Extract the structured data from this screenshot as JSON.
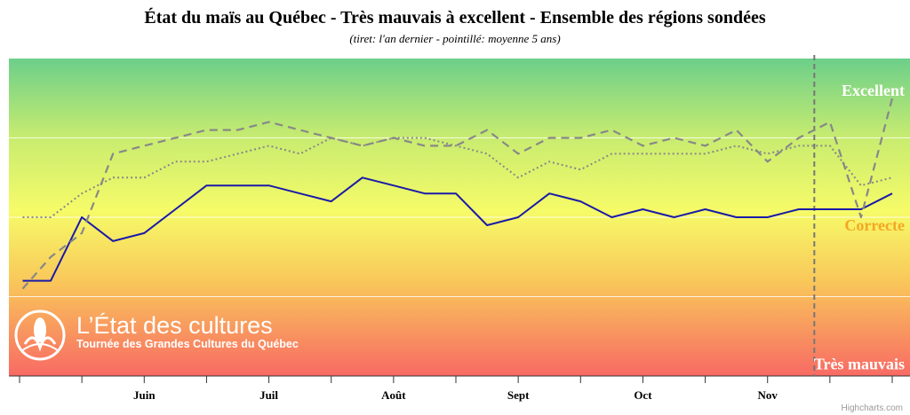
{
  "chart_data": {
    "type": "line",
    "title": "État du maïs au Québec - Très mauvais à excellent - Ensemble des régions sondées",
    "subtitle": "(tiret: l'an dernier - pointillé: moyenne 5 ans)",
    "xlabel": "",
    "ylabel": "",
    "ylim": [
      0,
      4
    ],
    "grid": true,
    "x_tick_labels": [
      "Juin",
      "Juil",
      "Août",
      "Sept",
      "Oct",
      "Nov"
    ],
    "x_tick_positions": [
      4,
      8,
      12,
      16,
      20,
      24
    ],
    "xlim": [
      0,
      28
    ],
    "band_labels": [
      {
        "label": "Excellent",
        "value": 3.6,
        "color": "#ffffff"
      },
      {
        "label": "Correcte",
        "value": 1.9,
        "color": "#f5a623"
      },
      {
        "label": "Très mauvais",
        "value": 0.15,
        "color": "#ffffff"
      }
    ],
    "vertical_marker_x": 25.5,
    "series": [
      {
        "style": "solid",
        "color": "#1a1aa8",
        "x": [
          0.1,
          1,
          2,
          3,
          4,
          5,
          6,
          7,
          8,
          9,
          10,
          11,
          12,
          13,
          14,
          15,
          16,
          17,
          18,
          19,
          20,
          21,
          22,
          23,
          24,
          25,
          26,
          27,
          28
        ],
        "y": [
          1.2,
          1.2,
          2.0,
          1.7,
          1.8,
          2.1,
          2.4,
          2.4,
          2.4,
          2.3,
          2.2,
          2.5,
          2.4,
          2.3,
          2.3,
          1.9,
          2.0,
          2.3,
          2.2,
          2.0,
          2.1,
          2.0,
          2.1,
          2.0,
          2.0,
          2.1,
          2.1,
          2.1,
          2.3
        ]
      },
      {
        "style": "dashed",
        "color": "#888888",
        "x": [
          0.1,
          1,
          2,
          3,
          4,
          5,
          6,
          7,
          8,
          9,
          10,
          11,
          12,
          13,
          14,
          15,
          16,
          17,
          18,
          19,
          20,
          21,
          22,
          23,
          24,
          25,
          26,
          27,
          28
        ],
        "y": [
          1.1,
          1.5,
          1.8,
          2.8,
          2.9,
          3.0,
          3.1,
          3.1,
          3.2,
          3.1,
          3.0,
          2.9,
          3.0,
          2.9,
          2.9,
          3.1,
          2.8,
          3.0,
          3.0,
          3.1,
          2.9,
          3.0,
          2.9,
          3.1,
          2.7,
          3.0,
          3.2,
          2.0,
          3.5
        ]
      },
      {
        "style": "dotted",
        "color": "#888888",
        "x": [
          0.1,
          1,
          2,
          3,
          4,
          5,
          6,
          7,
          8,
          9,
          10,
          11,
          12,
          13,
          14,
          15,
          16,
          17,
          18,
          19,
          20,
          21,
          22,
          23,
          24,
          25,
          26,
          27,
          28
        ],
        "y": [
          2.0,
          2.0,
          2.3,
          2.5,
          2.5,
          2.7,
          2.7,
          2.8,
          2.9,
          2.8,
          3.0,
          2.9,
          3.0,
          3.0,
          2.9,
          2.8,
          2.5,
          2.7,
          2.6,
          2.8,
          2.8,
          2.8,
          2.8,
          2.9,
          2.8,
          2.9,
          2.9,
          2.4,
          2.5
        ]
      }
    ]
  },
  "logo": {
    "title": "L’État des cultures",
    "subtitle": "Tournée des Grandes Cultures du Québec"
  },
  "credit": "Highcharts.com"
}
